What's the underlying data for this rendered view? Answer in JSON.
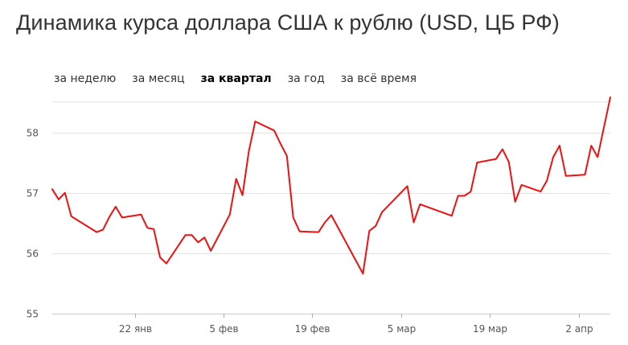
{
  "title": "Динамика курса доллара США к рублю (USD, ЦБ РФ)",
  "period_tabs": [
    {
      "label": "за неделю",
      "active": false
    },
    {
      "label": "за месяц",
      "active": false
    },
    {
      "label": "за квартал",
      "active": true
    },
    {
      "label": "за год",
      "active": false
    },
    {
      "label": "за всё время",
      "active": false
    }
  ],
  "colors": {
    "line": "#ee1111",
    "grid": "#e3e3e3",
    "axis_text": "#555555"
  },
  "chart_data": {
    "type": "line",
    "title": "",
    "xlabel": "",
    "ylabel": "",
    "ylim": [
      55,
      58.5
    ],
    "yticks": [
      55,
      56,
      57,
      58
    ],
    "grid": true,
    "xlim": [
      "2018-01-09",
      "2018-04-07"
    ],
    "xticks": [
      {
        "label": "22 янв",
        "date": "2018-01-22"
      },
      {
        "label": "5 фев",
        "date": "2018-02-05"
      },
      {
        "label": "19 фев",
        "date": "2018-02-19"
      },
      {
        "label": "5 мар",
        "date": "2018-03-05"
      },
      {
        "label": "19 мар",
        "date": "2018-03-19"
      },
      {
        "label": "2 апр",
        "date": "2018-04-02"
      }
    ],
    "series": [
      {
        "x": [
          "2018-01-09",
          "2018-01-10",
          "2018-01-11",
          "2018-01-12",
          "2018-01-16",
          "2018-01-17",
          "2018-01-18",
          "2018-01-19",
          "2018-01-20",
          "2018-01-23",
          "2018-01-24",
          "2018-01-25",
          "2018-01-26",
          "2018-01-27",
          "2018-01-30",
          "2018-01-31",
          "2018-02-01",
          "2018-02-02",
          "2018-02-03",
          "2018-02-06",
          "2018-02-07",
          "2018-02-08",
          "2018-02-09",
          "2018-02-10",
          "2018-02-13",
          "2018-02-14",
          "2018-02-15",
          "2018-02-16",
          "2018-02-17",
          "2018-02-20",
          "2018-02-21",
          "2018-02-22",
          "2018-02-27",
          "2018-02-28",
          "2018-03-01",
          "2018-03-02",
          "2018-03-06",
          "2018-03-07",
          "2018-03-08",
          "2018-03-13",
          "2018-03-14",
          "2018-03-15",
          "2018-03-16",
          "2018-03-17",
          "2018-03-20",
          "2018-03-21",
          "2018-03-22",
          "2018-03-23",
          "2018-03-24",
          "2018-03-27",
          "2018-03-28",
          "2018-03-29",
          "2018-03-30",
          "2018-03-31",
          "2018-04-03",
          "2018-04-04",
          "2018-04-05",
          "2018-04-07"
        ],
        "values": [
          57.06,
          56.89,
          57.0,
          56.61,
          56.35,
          56.39,
          56.6,
          56.77,
          56.59,
          56.64,
          56.42,
          56.4,
          55.93,
          55.83,
          56.3,
          56.3,
          56.18,
          56.26,
          56.04,
          56.64,
          57.23,
          56.96,
          57.69,
          58.18,
          58.03,
          57.81,
          57.61,
          56.59,
          56.36,
          56.35,
          56.51,
          56.63,
          55.66,
          56.37,
          56.45,
          56.68,
          57.11,
          56.51,
          56.81,
          56.62,
          56.95,
          56.95,
          57.02,
          57.5,
          57.56,
          57.72,
          57.51,
          56.85,
          57.13,
          57.02,
          57.2,
          57.59,
          57.78,
          57.28,
          57.3,
          57.78,
          57.59,
          58.58
        ]
      }
    ]
  }
}
